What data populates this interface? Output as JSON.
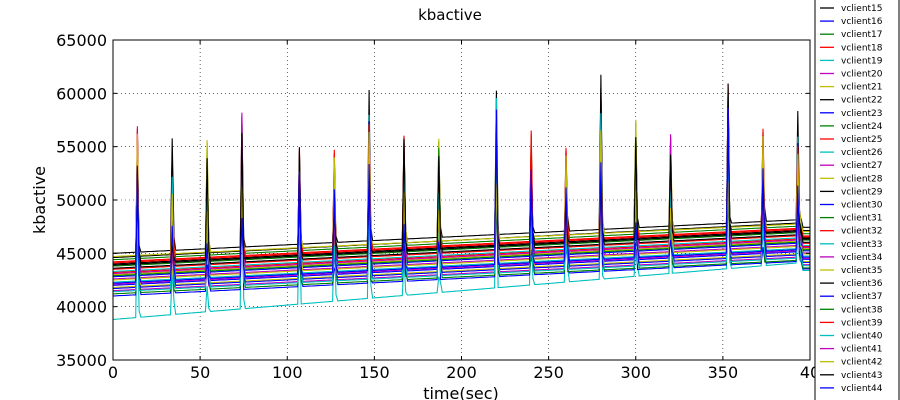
{
  "chart_data": {
    "type": "line",
    "title": "kbactive",
    "xlabel": "time(sec)",
    "ylabel": "kbactive",
    "xlim": [
      0,
      400
    ],
    "ylim": [
      35000,
      65000
    ],
    "x_ticks": [
      "0",
      "50",
      "100",
      "150",
      "200",
      "250",
      "300",
      "350",
      "40"
    ],
    "y_ticks": [
      "35000",
      "40000",
      "45000",
      "50000",
      "55000",
      "60000",
      "65000"
    ],
    "grid": true,
    "legend_placement": "right-outside",
    "series": [
      {
        "name": "vclient15",
        "color": "#000000",
        "start": 44600,
        "end": 47900
      },
      {
        "name": "vclient16",
        "color": "#0000ff",
        "start": 42000,
        "end": 45200
      },
      {
        "name": "vclient17",
        "color": "#008000",
        "start": 43800,
        "end": 47000
      },
      {
        "name": "vclient18",
        "color": "#ff0000",
        "start": 43200,
        "end": 46400
      },
      {
        "name": "vclient19",
        "color": "#00bfbf",
        "start": 38800,
        "end": 44200
      },
      {
        "name": "vclient20",
        "color": "#bf00bf",
        "start": 42600,
        "end": 45800
      },
      {
        "name": "vclient21",
        "color": "#bfbf00",
        "start": 41800,
        "end": 45000
      },
      {
        "name": "vclient22",
        "color": "#000000",
        "start": 44000,
        "end": 47200
      },
      {
        "name": "vclient23",
        "color": "#0000ff",
        "start": 41000,
        "end": 44300
      },
      {
        "name": "vclient24",
        "color": "#008000",
        "start": 44400,
        "end": 47600
      },
      {
        "name": "vclient25",
        "color": "#ff0000",
        "start": 43500,
        "end": 46700
      },
      {
        "name": "vclient26",
        "color": "#00bfbf",
        "start": 42300,
        "end": 45500
      },
      {
        "name": "vclient27",
        "color": "#bf00bf",
        "start": 41500,
        "end": 44700
      },
      {
        "name": "vclient28",
        "color": "#bfbf00",
        "start": 43000,
        "end": 46200
      },
      {
        "name": "vclient29",
        "color": "#000000",
        "start": 45000,
        "end": 48200
      },
      {
        "name": "vclient30",
        "color": "#0000ff",
        "start": 42800,
        "end": 46000
      },
      {
        "name": "vclient31",
        "color": "#008000",
        "start": 41200,
        "end": 44400
      },
      {
        "name": "vclient32",
        "color": "#ff0000",
        "start": 44200,
        "end": 47400
      },
      {
        "name": "vclient33",
        "color": "#00bfbf",
        "start": 43300,
        "end": 46500
      },
      {
        "name": "vclient34",
        "color": "#bf00bf",
        "start": 42100,
        "end": 45300
      },
      {
        "name": "vclient35",
        "color": "#bfbf00",
        "start": 44700,
        "end": 47800
      },
      {
        "name": "vclient36",
        "color": "#000000",
        "start": 43600,
        "end": 46800
      },
      {
        "name": "vclient37",
        "color": "#0000ff",
        "start": 41700,
        "end": 44900
      },
      {
        "name": "vclient38",
        "color": "#008000",
        "start": 42900,
        "end": 46100
      },
      {
        "name": "vclient39",
        "color": "#ff0000",
        "start": 44100,
        "end": 47300
      },
      {
        "name": "vclient40",
        "color": "#00bfbf",
        "start": 41400,
        "end": 44600
      },
      {
        "name": "vclient41",
        "color": "#bf00bf",
        "start": 43100,
        "end": 46300
      },
      {
        "name": "vclient42",
        "color": "#bfbf00",
        "start": 42500,
        "end": 45700
      },
      {
        "name": "vclient43",
        "color": "#000000",
        "start": 43900,
        "end": 47100
      },
      {
        "name": "vclient44",
        "color": "#0000ff",
        "start": 42200,
        "end": 45400
      }
    ]
  }
}
